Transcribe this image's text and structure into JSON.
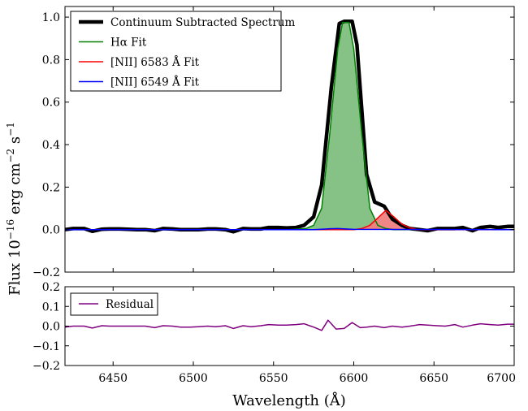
{
  "chart_data": [
    {
      "type": "line",
      "panel": "spectrum",
      "ylabel": "Flux 10",
      "ylabel_sup1": "−16",
      "ylabel_mid": " erg cm",
      "ylabel_sup2": "−2",
      "ylabel_end": " s",
      "ylabel_sup3": "−1",
      "xlim": [
        6420,
        6700
      ],
      "ylim": [
        -0.2,
        1.05
      ],
      "yticks": [
        -0.2,
        0.0,
        0.2,
        0.4,
        0.6,
        0.8,
        1.0
      ],
      "ytick_labels": [
        "−0.2",
        "0.0",
        "0.2",
        "0.4",
        "0.6",
        "0.8",
        "1.0"
      ],
      "grid": false,
      "legend_position": "top-left",
      "series": [
        {
          "name": "Continuum Subtracted Spectrum",
          "color": "#000000",
          "x": [
            6420,
            6425,
            6432,
            6437,
            6443,
            6448,
            6454,
            6459,
            6465,
            6470,
            6476,
            6481,
            6487,
            6492,
            6498,
            6503,
            6509,
            6514,
            6520,
            6525,
            6531,
            6536,
            6542,
            6547,
            6553,
            6558,
            6564,
            6569,
            6575,
            6580,
            6586,
            6591,
            6594,
            6599,
            6602,
            6608,
            6613,
            6619,
            6624,
            6630,
            6635,
            6641,
            6646,
            6652,
            6657,
            6663,
            6668,
            6674,
            6679,
            6685,
            6690,
            6696,
            6700
          ],
          "y": [
            0.0,
            0.005,
            0.005,
            -0.008,
            0.002,
            0.003,
            0.003,
            0.002,
            0.0,
            0.0,
            -0.005,
            0.005,
            0.003,
            0.0,
            0.0,
            0.0,
            0.003,
            0.003,
            0.0,
            -0.01,
            0.005,
            0.003,
            0.003,
            0.01,
            0.01,
            0.008,
            0.01,
            0.02,
            0.06,
            0.21,
            0.67,
            0.97,
            0.98,
            0.98,
            0.87,
            0.26,
            0.13,
            0.11,
            0.05,
            0.02,
            0.005,
            0.0,
            -0.005,
            0.005,
            0.005,
            0.005,
            0.01,
            -0.005,
            0.01,
            0.015,
            0.01,
            0.015,
            0.015
          ]
        },
        {
          "name": "Hα Fit",
          "color": "#008000",
          "fill": "#7fbf7f",
          "x": [
            6420,
            6560,
            6570,
            6575,
            6580,
            6585,
            6590,
            6593,
            6597,
            6600,
            6605,
            6610,
            6615,
            6620,
            6625,
            6700
          ],
          "y": [
            0.0,
            0.0,
            0.005,
            0.02,
            0.1,
            0.45,
            0.85,
            0.975,
            0.975,
            0.85,
            0.45,
            0.1,
            0.02,
            0.005,
            0.0,
            0.0
          ]
        },
        {
          "name": "[NII] 6583 Å Fit",
          "color": "#ff0000",
          "fill": "#f07f7f",
          "x": [
            6420,
            6600,
            6605,
            6610,
            6615,
            6620,
            6625,
            6630,
            6635,
            6640,
            6700
          ],
          "y": [
            0.0,
            0.0,
            0.005,
            0.02,
            0.055,
            0.09,
            0.06,
            0.025,
            0.008,
            0.0,
            0.0
          ]
        },
        {
          "name": "[NII] 6549 Å Fit",
          "color": "#0000ff",
          "fill": "#7f7fff",
          "x": [
            6420,
            6575,
            6580,
            6585,
            6590,
            6595,
            6600,
            6700
          ],
          "y": [
            0.0,
            0.0,
            0.002,
            0.004,
            0.005,
            0.003,
            0.001,
            0.0
          ]
        }
      ]
    },
    {
      "type": "line",
      "panel": "residual",
      "xlabel": "Wavelength (Å)",
      "xlim": [
        6420,
        6700
      ],
      "ylim": [
        -0.2,
        0.2
      ],
      "xticks": [
        6450,
        6500,
        6550,
        6600,
        6650,
        6700
      ],
      "xtick_labels": [
        "6450",
        "6500",
        "6550",
        "6600",
        "6650",
        "6700"
      ],
      "yticks": [
        -0.2,
        -0.1,
        0.0,
        0.1,
        0.2
      ],
      "ytick_labels": [
        "−0.2",
        "−0.1",
        "0.0",
        "0.1",
        "0.2"
      ],
      "grid": false,
      "legend_position": "top-left",
      "series": [
        {
          "name": "Residual",
          "color": "#800080",
          "x": [
            6420,
            6425,
            6432,
            6437,
            6443,
            6448,
            6454,
            6459,
            6465,
            6470,
            6476,
            6481,
            6487,
            6492,
            6498,
            6503,
            6509,
            6514,
            6520,
            6525,
            6531,
            6536,
            6542,
            6547,
            6553,
            6558,
            6564,
            6569,
            6575,
            6580,
            6584,
            6589,
            6594,
            6599,
            6604,
            6608,
            6613,
            6619,
            6624,
            6630,
            6635,
            6641,
            6646,
            6652,
            6657,
            6663,
            6668,
            6674,
            6679,
            6685,
            6690,
            6696,
            6700
          ],
          "y": [
            -0.005,
            0.0,
            0.0,
            -0.01,
            0.002,
            0.0,
            0.0,
            0.0,
            0.0,
            0.0,
            -0.008,
            0.002,
            0.0,
            -0.005,
            -0.005,
            -0.003,
            0.0,
            -0.003,
            0.002,
            -0.012,
            0.002,
            -0.003,
            0.002,
            0.008,
            0.005,
            0.005,
            0.008,
            0.012,
            -0.005,
            -0.022,
            0.03,
            -0.015,
            -0.012,
            0.018,
            -0.008,
            -0.005,
            0.0,
            -0.008,
            0.0,
            -0.005,
            0.0,
            0.008,
            0.005,
            0.002,
            0.0,
            0.008,
            -0.005,
            0.005,
            0.012,
            0.008,
            0.005,
            0.01,
            0.01
          ]
        }
      ]
    }
  ]
}
